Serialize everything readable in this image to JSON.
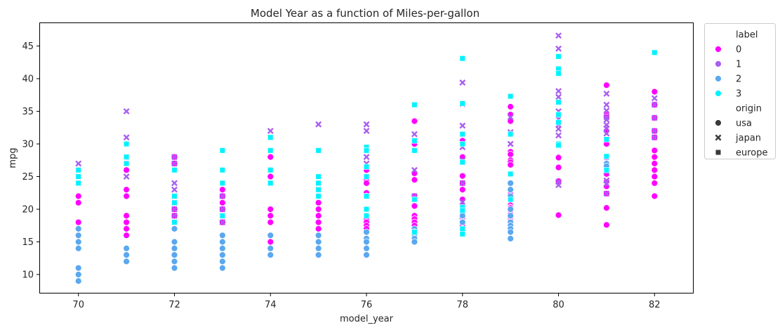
{
  "chart_data": {
    "type": "scatter",
    "title": "Model Year as a function of Miles-per-gallon",
    "xlabel": "model_year",
    "ylabel": "mpg",
    "xlim": [
      69.2,
      82.8
    ],
    "ylim": [
      7.2,
      48.5
    ],
    "xticks": [
      70,
      72,
      74,
      76,
      78,
      80,
      82
    ],
    "yticks": [
      10,
      15,
      20,
      25,
      30,
      35,
      40,
      45
    ],
    "legend": {
      "placement": "outside-right-top",
      "hue_title": "label",
      "style_title": "origin",
      "hue_entries": [
        {
          "name": "0",
          "color": "#ff00ff"
        },
        {
          "name": "1",
          "color": "#a95ff0"
        },
        {
          "name": "2",
          "color": "#5aa8f0"
        },
        {
          "name": "3",
          "color": "#00f2ff"
        }
      ],
      "style_entries": [
        {
          "name": "usa",
          "marker": "circle"
        },
        {
          "name": "japan",
          "marker": "x"
        },
        {
          "name": "europe",
          "marker": "square"
        }
      ]
    },
    "series": [
      {
        "label": "0",
        "origin": "usa",
        "points": [
          [
            70,
            22
          ],
          [
            70,
            21
          ],
          [
            70,
            18
          ],
          [
            71,
            28
          ],
          [
            71,
            27
          ],
          [
            71,
            26
          ],
          [
            71,
            23
          ],
          [
            71,
            22
          ],
          [
            71,
            19
          ],
          [
            71,
            18
          ],
          [
            71,
            17
          ],
          [
            71,
            16
          ],
          [
            72,
            28
          ],
          [
            72,
            27
          ],
          [
            72,
            22
          ],
          [
            72,
            21
          ],
          [
            72,
            20
          ],
          [
            72,
            19
          ],
          [
            72,
            18
          ],
          [
            73,
            23
          ],
          [
            73,
            22
          ],
          [
            73,
            21
          ],
          [
            73,
            20
          ],
          [
            73,
            19
          ],
          [
            73,
            18
          ],
          [
            74,
            28
          ],
          [
            74,
            26
          ],
          [
            74,
            25
          ],
          [
            74,
            20
          ],
          [
            74,
            19
          ],
          [
            74,
            18
          ],
          [
            74,
            16
          ],
          [
            74,
            15
          ],
          [
            75,
            23
          ],
          [
            75,
            22
          ],
          [
            75,
            21
          ],
          [
            75,
            20
          ],
          [
            75,
            19
          ],
          [
            75,
            18
          ],
          [
            75,
            17
          ],
          [
            75,
            16
          ],
          [
            75,
            15
          ],
          [
            76,
            26
          ],
          [
            76,
            25
          ],
          [
            76,
            24.5
          ],
          [
            76,
            24
          ],
          [
            76,
            22.5
          ],
          [
            76,
            22
          ],
          [
            76,
            20
          ],
          [
            76,
            19
          ],
          [
            76,
            18.5
          ],
          [
            76,
            18
          ],
          [
            76,
            17.5
          ],
          [
            76,
            17
          ],
          [
            77,
            33.5
          ],
          [
            77,
            30
          ],
          [
            77,
            25.5
          ],
          [
            77,
            24.5
          ],
          [
            77,
            22
          ],
          [
            77,
            21.5
          ],
          [
            77,
            20.5
          ],
          [
            77,
            19
          ],
          [
            77,
            18.5
          ],
          [
            77,
            18
          ],
          [
            77,
            17.5
          ],
          [
            78,
            30.5
          ],
          [
            78,
            28
          ],
          [
            78,
            25.1
          ],
          [
            78,
            24
          ],
          [
            78,
            23
          ],
          [
            78,
            21.5
          ],
          [
            78,
            20.5
          ],
          [
            78,
            20.2
          ],
          [
            78,
            19.9
          ],
          [
            78,
            19.4
          ],
          [
            78,
            19.2
          ],
          [
            78,
            18.6
          ],
          [
            78,
            18.1
          ],
          [
            78,
            17.7
          ],
          [
            78,
            17.5
          ],
          [
            79,
            35.7
          ],
          [
            79,
            34.5
          ],
          [
            79,
            33.5
          ],
          [
            79,
            28.8
          ],
          [
            79,
            28.4
          ],
          [
            79,
            27.5
          ],
          [
            79,
            27.2
          ],
          [
            79,
            26.8
          ],
          [
            79,
            23.9
          ],
          [
            79,
            22.3
          ],
          [
            79,
            21.6
          ],
          [
            79,
            21.5
          ],
          [
            79,
            20.6
          ],
          [
            79,
            20.3
          ],
          [
            79,
            20.2
          ],
          [
            79,
            19.8
          ],
          [
            79,
            19.2
          ],
          [
            79,
            18.5
          ],
          [
            79,
            18.2
          ],
          [
            79,
            17.6
          ],
          [
            80,
            28
          ],
          [
            80,
            27.9
          ],
          [
            80,
            26.4
          ],
          [
            80,
            24.3
          ],
          [
            80,
            19.1
          ],
          [
            81,
            39
          ],
          [
            81,
            34.7
          ],
          [
            81,
            34.4
          ],
          [
            81,
            34.1
          ],
          [
            81,
            32
          ],
          [
            81,
            30
          ],
          [
            81,
            28
          ],
          [
            81,
            26.6
          ],
          [
            81,
            25.4
          ],
          [
            81,
            24.2
          ],
          [
            81,
            23.5
          ],
          [
            81,
            22.4
          ],
          [
            81,
            20.2
          ],
          [
            81,
            17.6
          ],
          [
            82,
            38
          ],
          [
            82,
            36
          ],
          [
            82,
            34
          ],
          [
            82,
            32
          ],
          [
            82,
            31
          ],
          [
            82,
            29
          ],
          [
            82,
            28
          ],
          [
            82,
            27
          ],
          [
            82,
            26
          ],
          [
            82,
            25
          ],
          [
            82,
            24
          ],
          [
            82,
            22
          ]
        ]
      },
      {
        "label": "2",
        "origin": "usa",
        "points": [
          [
            70,
            17
          ],
          [
            70,
            16
          ],
          [
            70,
            15
          ],
          [
            70,
            14
          ],
          [
            70,
            11
          ],
          [
            70,
            10
          ],
          [
            70,
            9
          ],
          [
            71,
            14
          ],
          [
            71,
            13
          ],
          [
            71,
            12
          ],
          [
            72,
            17
          ],
          [
            72,
            15
          ],
          [
            72,
            14
          ],
          [
            72,
            13
          ],
          [
            72,
            12
          ],
          [
            72,
            11
          ],
          [
            73,
            16
          ],
          [
            73,
            15
          ],
          [
            73,
            14
          ],
          [
            73,
            13
          ],
          [
            73,
            12
          ],
          [
            73,
            11
          ],
          [
            74,
            16
          ],
          [
            74,
            14
          ],
          [
            74,
            13
          ],
          [
            75,
            16
          ],
          [
            75,
            15
          ],
          [
            75,
            14
          ],
          [
            75,
            13
          ],
          [
            76,
            16.5
          ],
          [
            76,
            15.5
          ],
          [
            76,
            15
          ],
          [
            76,
            14
          ],
          [
            76,
            13
          ],
          [
            77,
            17
          ],
          [
            77,
            16.5
          ],
          [
            77,
            16
          ],
          [
            77,
            15.5
          ],
          [
            77,
            15
          ],
          [
            78,
            19
          ],
          [
            78,
            18
          ],
          [
            78,
            17
          ],
          [
            78,
            16.5
          ],
          [
            79,
            24
          ],
          [
            79,
            23
          ],
          [
            79,
            22
          ],
          [
            79,
            20
          ],
          [
            79,
            19
          ],
          [
            79,
            18
          ],
          [
            79,
            17.5
          ],
          [
            79,
            17
          ],
          [
            79,
            16.5
          ],
          [
            79,
            15.5
          ],
          [
            81,
            27
          ],
          [
            81,
            26.6
          ]
        ]
      },
      {
        "label": "1",
        "origin": "japan",
        "points": [
          [
            70,
            27
          ],
          [
            70,
            24
          ],
          [
            71,
            35
          ],
          [
            71,
            31
          ],
          [
            71,
            28
          ],
          [
            71,
            27
          ],
          [
            71,
            25
          ],
          [
            72,
            28
          ],
          [
            72,
            27
          ],
          [
            72,
            24
          ],
          [
            72,
            23
          ],
          [
            72,
            22
          ],
          [
            72,
            21
          ],
          [
            72,
            20
          ],
          [
            72,
            19
          ],
          [
            73,
            22
          ],
          [
            73,
            20
          ],
          [
            73,
            19
          ],
          [
            73,
            18
          ],
          [
            74,
            32
          ],
          [
            74,
            31
          ],
          [
            74,
            26
          ],
          [
            74,
            24
          ],
          [
            75,
            33
          ],
          [
            75,
            29
          ],
          [
            75,
            24
          ],
          [
            75,
            23
          ],
          [
            76,
            33
          ],
          [
            76,
            32
          ],
          [
            76,
            28
          ],
          [
            76,
            27
          ],
          [
            77,
            31.5
          ],
          [
            77,
            30.5
          ],
          [
            77,
            26
          ],
          [
            77,
            22
          ],
          [
            77,
            21.5
          ],
          [
            78,
            39.4
          ],
          [
            78,
            36.1
          ],
          [
            78,
            32.8
          ],
          [
            78,
            31.5
          ],
          [
            78,
            29.5
          ],
          [
            78,
            27.5
          ],
          [
            78,
            27.2
          ],
          [
            78,
            24
          ],
          [
            78,
            21.1
          ],
          [
            79,
            34.1
          ],
          [
            79,
            31.8
          ],
          [
            79,
            30
          ],
          [
            80,
            46.6
          ],
          [
            80,
            44.6
          ],
          [
            80,
            38.1
          ],
          [
            80,
            37.2
          ],
          [
            80,
            35
          ],
          [
            80,
            33.8
          ],
          [
            80,
            32.9
          ],
          [
            80,
            32.3
          ],
          [
            80,
            31.3
          ],
          [
            80,
            29.8
          ],
          [
            80,
            24.2
          ],
          [
            80,
            23.7
          ],
          [
            81,
            37.7
          ],
          [
            81,
            36
          ],
          [
            81,
            35.1
          ],
          [
            81,
            34.1
          ],
          [
            81,
            33.7
          ],
          [
            81,
            32.9
          ],
          [
            81,
            32.4
          ],
          [
            81,
            31.6
          ],
          [
            81,
            28
          ],
          [
            81,
            25.8
          ],
          [
            81,
            24.4
          ],
          [
            81,
            23.9
          ],
          [
            81,
            22.4
          ],
          [
            82,
            37
          ],
          [
            82,
            36
          ],
          [
            82,
            34
          ],
          [
            82,
            32
          ],
          [
            82,
            31
          ]
        ]
      },
      {
        "label": "3",
        "origin": "europe",
        "points": [
          [
            70,
            26
          ],
          [
            70,
            25
          ],
          [
            70,
            24
          ],
          [
            71,
            30
          ],
          [
            71,
            28
          ],
          [
            71,
            27
          ],
          [
            72,
            26
          ],
          [
            72,
            22
          ],
          [
            72,
            21
          ],
          [
            72,
            18
          ],
          [
            73,
            29
          ],
          [
            73,
            26
          ],
          [
            73,
            24
          ],
          [
            73,
            19
          ],
          [
            74,
            31
          ],
          [
            74,
            29
          ],
          [
            74,
            26
          ],
          [
            74,
            24
          ],
          [
            75,
            29
          ],
          [
            75,
            25
          ],
          [
            75,
            24
          ],
          [
            75,
            23
          ],
          [
            75,
            22
          ],
          [
            76,
            29.5
          ],
          [
            76,
            29
          ],
          [
            76,
            26.5
          ],
          [
            76,
            25
          ],
          [
            76,
            22
          ],
          [
            76,
            20
          ],
          [
            76,
            19
          ],
          [
            77,
            36
          ],
          [
            77,
            30.5
          ],
          [
            77,
            29
          ],
          [
            77,
            21.5
          ],
          [
            77,
            16.5
          ],
          [
            78,
            43.1
          ],
          [
            78,
            36.2
          ],
          [
            78,
            31.5
          ],
          [
            78,
            30
          ],
          [
            78,
            27.2
          ],
          [
            78,
            20.3
          ],
          [
            78,
            19.8
          ],
          [
            78,
            17
          ],
          [
            78,
            16.2
          ],
          [
            79,
            37.3
          ],
          [
            79,
            31.5
          ],
          [
            79,
            25.4
          ],
          [
            79,
            21.5
          ],
          [
            80,
            43.4
          ],
          [
            80,
            41.5
          ],
          [
            80,
            40.8
          ],
          [
            80,
            36.4
          ],
          [
            80,
            34.5
          ],
          [
            80,
            33.3
          ],
          [
            80,
            30
          ],
          [
            80,
            29.8
          ],
          [
            81,
            30.7
          ],
          [
            81,
            28.1
          ],
          [
            81,
            26
          ],
          [
            82,
            44
          ]
        ]
      }
    ]
  }
}
